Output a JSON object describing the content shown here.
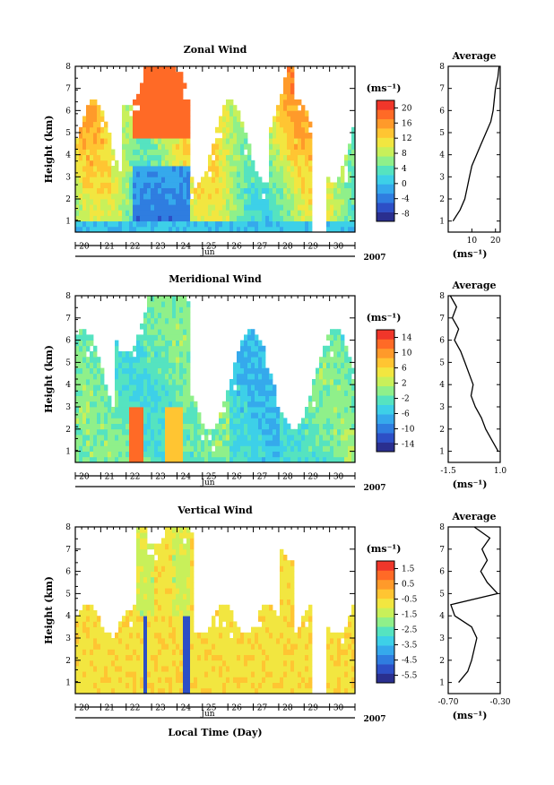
{
  "colors": {
    "scale": [
      "#2a2f8f",
      "#2d4fc6",
      "#2f7de0",
      "#35a9ec",
      "#3dd0e8",
      "#55e3c0",
      "#8ff08a",
      "#c8f05a",
      "#f2e640",
      "#ffc532",
      "#ff9a2a",
      "#ff6a26",
      "#f0362a"
    ]
  },
  "chart_data": [
    {
      "type": "heatmap",
      "title": "Zonal Wind",
      "ylabel": "Height (km)",
      "xlabel_month": "Jun",
      "year": "2007",
      "ylim": [
        0.5,
        8
      ],
      "yticks": [
        "1",
        "2",
        "3",
        "4",
        "5",
        "6",
        "7",
        "8"
      ],
      "x_days": [
        "20",
        "21",
        "22",
        "23",
        "24",
        "25",
        "26",
        "27",
        "28",
        "29",
        "30"
      ],
      "colorbar_unit": "(ms⁻¹)",
      "colorbar_ticks": [
        "20",
        "16",
        "12",
        "8",
        "4",
        "0",
        "-4",
        "-8"
      ],
      "colorbar_range": [
        -10,
        22
      ],
      "average": {
        "title": "Average",
        "xlabel": "(ms⁻¹)",
        "xticks": [
          "10",
          "20"
        ],
        "xlim": [
          0,
          22
        ],
        "profile": [
          [
            1,
            2
          ],
          [
            1.5,
            5
          ],
          [
            2,
            7
          ],
          [
            2.5,
            8
          ],
          [
            3,
            9
          ],
          [
            3.5,
            10
          ],
          [
            4,
            12
          ],
          [
            4.5,
            14
          ],
          [
            5,
            16
          ],
          [
            5.5,
            18
          ],
          [
            6,
            19
          ],
          [
            6.5,
            19.5
          ],
          [
            7,
            20
          ],
          [
            7.5,
            21
          ],
          [
            8,
            21.5
          ]
        ]
      }
    },
    {
      "type": "heatmap",
      "title": "Meridional Wind",
      "ylabel": "Height (km)",
      "xlabel_month": "Jun",
      "year": "2007",
      "ylim": [
        0.5,
        8
      ],
      "yticks": [
        "1",
        "2",
        "3",
        "4",
        "5",
        "6",
        "7",
        "8"
      ],
      "x_days": [
        "20",
        "21",
        "22",
        "23",
        "24",
        "25",
        "26",
        "27",
        "28",
        "29",
        "30"
      ],
      "colorbar_unit": "(ms⁻¹)",
      "colorbar_ticks": [
        "14",
        "10",
        "6",
        "2",
        "-2",
        "-6",
        "-10",
        "-14"
      ],
      "colorbar_range": [
        -16,
        16
      ],
      "average": {
        "title": "Average",
        "xlabel": "(ms⁻¹)",
        "xticks": [
          "-1.5",
          "1.0"
        ],
        "xlim": [
          -1.5,
          1.0
        ],
        "profile": [
          [
            1,
            0.9
          ],
          [
            1.5,
            0.6
          ],
          [
            2,
            0.3
          ],
          [
            2.5,
            0.1
          ],
          [
            3,
            -0.2
          ],
          [
            3.5,
            -0.4
          ],
          [
            4,
            -0.3
          ],
          [
            4.5,
            -0.5
          ],
          [
            5,
            -0.7
          ],
          [
            5.5,
            -0.9
          ],
          [
            6,
            -1.2
          ],
          [
            6.5,
            -1.0
          ],
          [
            7,
            -1.3
          ],
          [
            7.5,
            -1.1
          ],
          [
            8,
            -1.4
          ]
        ]
      }
    },
    {
      "type": "heatmap",
      "title": "Vertical Wind",
      "ylabel": "Height (km)",
      "xlabel_month": "Jun",
      "year": "2007",
      "xlabel": "Local Time (Day)",
      "ylim": [
        0.5,
        8
      ],
      "yticks": [
        "1",
        "2",
        "3",
        "4",
        "5",
        "6",
        "7",
        "8"
      ],
      "x_days": [
        "20",
        "21",
        "22",
        "23",
        "24",
        "25",
        "26",
        "27",
        "28",
        "29",
        "30"
      ],
      "colorbar_unit": "(ms⁻¹)",
      "colorbar_ticks": [
        "1.5",
        "0.5",
        "-0.5",
        "-1.5",
        "-2.5",
        "-3.5",
        "-4.5",
        "-5.5"
      ],
      "colorbar_range": [
        -6,
        2
      ],
      "average": {
        "title": "Average",
        "xlabel": "(ms⁻¹)",
        "xticks": [
          "-0.70",
          "-0.30"
        ],
        "xlim": [
          -0.7,
          -0.3
        ],
        "profile": [
          [
            1,
            -0.62
          ],
          [
            1.5,
            -0.55
          ],
          [
            2,
            -0.52
          ],
          [
            2.5,
            -0.5
          ],
          [
            3,
            -0.48
          ],
          [
            3.5,
            -0.52
          ],
          [
            4,
            -0.65
          ],
          [
            4.5,
            -0.68
          ],
          [
            5,
            -0.32
          ],
          [
            5.5,
            -0.4
          ],
          [
            6,
            -0.45
          ],
          [
            6.5,
            -0.4
          ],
          [
            7,
            -0.44
          ],
          [
            7.5,
            -0.38
          ],
          [
            8,
            -0.5
          ]
        ]
      }
    }
  ]
}
